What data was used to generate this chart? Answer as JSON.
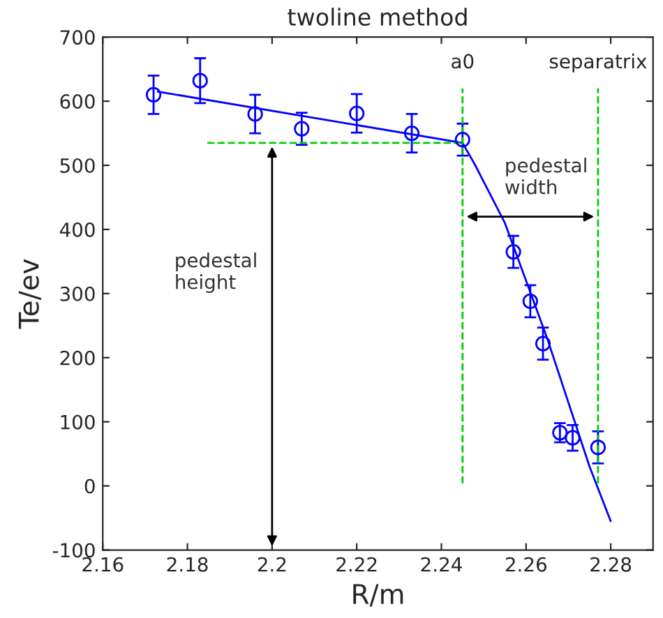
{
  "chart_data": {
    "type": "scatter",
    "title": "twoline method",
    "xlabel": "R/m",
    "ylabel": "Te/ev",
    "xlim": [
      2.16,
      2.29
    ],
    "ylim": [
      -100,
      700
    ],
    "xticks": [
      2.16,
      2.18,
      2.2,
      2.22,
      2.24,
      2.26,
      2.28
    ],
    "yticks": [
      -100,
      0,
      100,
      200,
      300,
      400,
      500,
      600,
      700
    ],
    "grid": false,
    "series": [
      {
        "marker": "circle",
        "color": "#0000ff",
        "x": [
          2.172,
          2.183,
          2.196,
          2.207,
          2.22,
          2.233,
          2.245,
          2.257,
          2.261,
          2.264,
          2.268,
          2.271,
          2.277
        ],
        "values": [
          610,
          632,
          580,
          557,
          581,
          550,
          540,
          365,
          288,
          222,
          83,
          75,
          60
        ],
        "errors": [
          30,
          35,
          30,
          25,
          30,
          30,
          25,
          25,
          25,
          25,
          15,
          20,
          25
        ]
      },
      {
        "type": "line",
        "color": "#0000ff",
        "x": [
          2.173,
          2.245,
          2.248,
          2.255,
          2.265,
          2.275,
          2.28
        ],
        "values": [
          615,
          535,
          500,
          410,
          230,
          30,
          -55
        ]
      }
    ],
    "ref_lines": [
      {
        "axis": "x",
        "value": 2.245,
        "label": "a0",
        "color": "#00cc00",
        "line_style": "dashed"
      },
      {
        "axis": "x",
        "value": 2.277,
        "label": "separatrix",
        "color": "#00cc00",
        "line_style": "dashed"
      },
      {
        "axis": "y",
        "value": 535,
        "color": "#00cc00",
        "line_style": "dashed"
      }
    ],
    "annotations": [
      "pedestal\nheight",
      "pedestal\nwidth"
    ]
  }
}
